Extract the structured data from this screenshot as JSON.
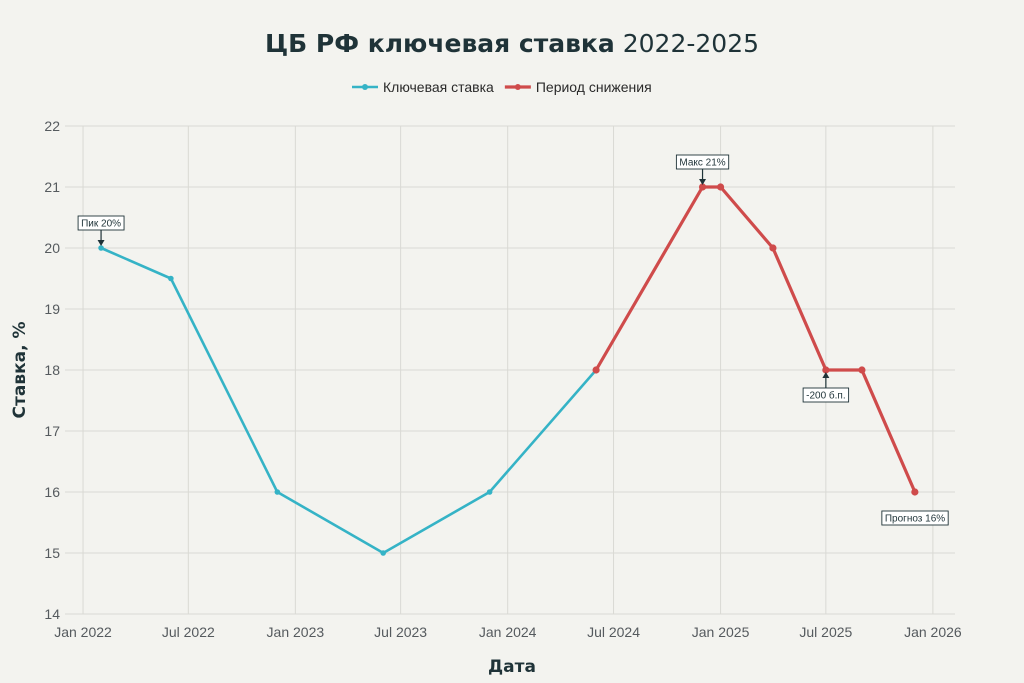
{
  "chart_data": {
    "type": "line",
    "title_bold": "ЦБ РФ ключевая ставка",
    "title_normal": "2022-2025",
    "xlabel": "Дата",
    "ylabel": "Ставка, %",
    "ylim": [
      14,
      22
    ],
    "y_ticks": [
      14,
      15,
      16,
      17,
      18,
      19,
      20,
      21,
      22
    ],
    "x_ticks": [
      "Jan 2022",
      "Jul 2022",
      "Jan 2023",
      "Jul 2023",
      "Jan 2024",
      "Jul 2024",
      "Jan 2025",
      "Jul 2025",
      "Jan 2026"
    ],
    "xlim": [
      "2021-12-01",
      "2026-02-08"
    ],
    "grid": true,
    "legend_position": "top",
    "series": [
      {
        "name": "Ключевая ставка",
        "color": "#35b3c6",
        "points": [
          {
            "x": "2022-02-01",
            "y": 20
          },
          {
            "x": "2022-06-01",
            "y": 19.5
          },
          {
            "x": "2022-12-01",
            "y": 16
          },
          {
            "x": "2023-06-01",
            "y": 15
          },
          {
            "x": "2023-12-01",
            "y": 16
          },
          {
            "x": "2024-06-01",
            "y": 18
          }
        ]
      },
      {
        "name": "Период снижения",
        "color": "#cf4b4b",
        "points": [
          {
            "x": "2024-06-01",
            "y": 18
          },
          {
            "x": "2024-12-01",
            "y": 21
          },
          {
            "x": "2025-01-01",
            "y": 21
          },
          {
            "x": "2025-04-01",
            "y": 20
          },
          {
            "x": "2025-07-01",
            "y": 18
          },
          {
            "x": "2025-09-01",
            "y": 18
          },
          {
            "x": "2025-12-01",
            "y": 16
          }
        ]
      }
    ],
    "annotations": [
      {
        "text": "Пик 20%",
        "x": "2022-02-01",
        "y": 20,
        "side": "above"
      },
      {
        "text": "Макс 21%",
        "x": "2024-12-01",
        "y": 21,
        "side": "above"
      },
      {
        "text": "-200 б.п.",
        "x": "2025-07-01",
        "y": 18,
        "side": "below"
      },
      {
        "text": "Прогноз 16%",
        "x": "2025-12-01",
        "y": 16,
        "side": "below-right"
      }
    ]
  }
}
